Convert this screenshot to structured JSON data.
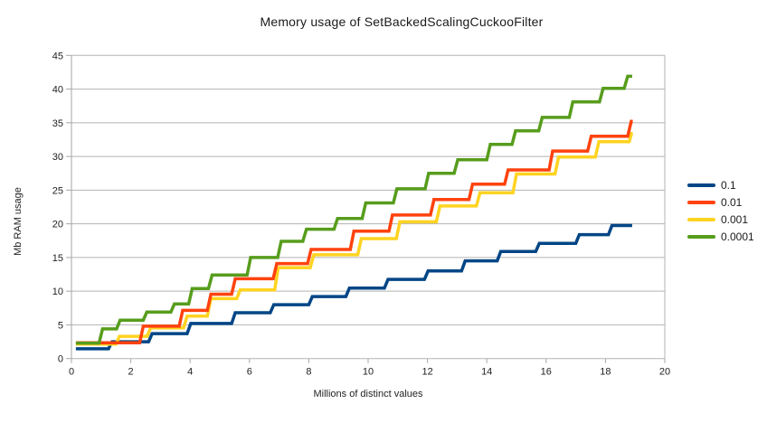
{
  "chart_data": {
    "type": "line",
    "step_style": true,
    "title": "Memory usage of SetBackedScalingCuckooFilter",
    "xlabel": "Millions of distinct values",
    "ylabel": "Mb RAM usage",
    "xlim": [
      0,
      20
    ],
    "ylim": [
      0,
      45
    ],
    "xticks": [
      0,
      2,
      4,
      6,
      8,
      10,
      12,
      14,
      16,
      18,
      20
    ],
    "yticks": [
      0,
      5,
      10,
      15,
      20,
      25,
      30,
      35,
      40,
      45
    ],
    "grid": "horizontal",
    "legend_position": "right",
    "colors": {
      "grid": "#b3b3b3",
      "axis": "#a6a6a6",
      "tick_text": "#222222"
    },
    "series": [
      {
        "name": "0.1",
        "color": "#004586",
        "points": [
          [
            0.15,
            1.45
          ],
          [
            1.25,
            1.45
          ],
          [
            1.37,
            2.5
          ],
          [
            2.6,
            2.5
          ],
          [
            2.72,
            3.7
          ],
          [
            3.9,
            3.7
          ],
          [
            4.02,
            5.2
          ],
          [
            5.4,
            5.2
          ],
          [
            5.52,
            6.8
          ],
          [
            6.7,
            6.8
          ],
          [
            6.82,
            8.0
          ],
          [
            8.0,
            8.0
          ],
          [
            8.12,
            9.2
          ],
          [
            9.25,
            9.2
          ],
          [
            9.37,
            10.45
          ],
          [
            10.55,
            10.45
          ],
          [
            10.67,
            11.75
          ],
          [
            11.9,
            11.75
          ],
          [
            12.02,
            13.0
          ],
          [
            13.15,
            13.0
          ],
          [
            13.27,
            14.5
          ],
          [
            14.35,
            14.5
          ],
          [
            14.47,
            15.9
          ],
          [
            15.65,
            15.9
          ],
          [
            15.77,
            17.1
          ],
          [
            17.0,
            17.1
          ],
          [
            17.12,
            18.4
          ],
          [
            18.1,
            18.4
          ],
          [
            18.22,
            19.75
          ],
          [
            18.9,
            19.75
          ]
        ]
      },
      {
        "name": "0.01",
        "color": "#ff420e",
        "points": [
          [
            0.15,
            2.35
          ],
          [
            2.3,
            2.35
          ],
          [
            2.42,
            4.8
          ],
          [
            3.63,
            4.8
          ],
          [
            3.75,
            7.15
          ],
          [
            4.58,
            7.15
          ],
          [
            4.7,
            9.55
          ],
          [
            5.4,
            9.55
          ],
          [
            5.52,
            11.85
          ],
          [
            6.8,
            11.85
          ],
          [
            6.92,
            14.1
          ],
          [
            7.96,
            14.1
          ],
          [
            8.08,
            16.2
          ],
          [
            9.4,
            16.2
          ],
          [
            9.52,
            18.9
          ],
          [
            10.7,
            18.9
          ],
          [
            10.82,
            21.3
          ],
          [
            12.1,
            21.3
          ],
          [
            12.22,
            23.6
          ],
          [
            13.4,
            23.6
          ],
          [
            13.52,
            25.9
          ],
          [
            14.6,
            25.9
          ],
          [
            14.72,
            28.0
          ],
          [
            16.1,
            28.0
          ],
          [
            16.22,
            30.8
          ],
          [
            17.4,
            30.8
          ],
          [
            17.52,
            33.0
          ],
          [
            18.75,
            33.0
          ],
          [
            18.87,
            35.2
          ],
          [
            18.92,
            35.2
          ]
        ]
      },
      {
        "name": "0.001",
        "color": "#ffd320",
        "points": [
          [
            0.15,
            2.15
          ],
          [
            1.5,
            2.15
          ],
          [
            1.62,
            3.3
          ],
          [
            2.55,
            3.3
          ],
          [
            2.67,
            4.55
          ],
          [
            3.78,
            4.55
          ],
          [
            3.9,
            6.3
          ],
          [
            4.58,
            6.3
          ],
          [
            4.7,
            8.9
          ],
          [
            5.57,
            8.9
          ],
          [
            5.69,
            10.2
          ],
          [
            6.85,
            10.2
          ],
          [
            6.97,
            13.5
          ],
          [
            8.05,
            13.5
          ],
          [
            8.17,
            15.4
          ],
          [
            9.65,
            15.4
          ],
          [
            9.77,
            17.8
          ],
          [
            10.95,
            17.8
          ],
          [
            11.07,
            20.3
          ],
          [
            12.3,
            20.3
          ],
          [
            12.42,
            22.65
          ],
          [
            13.65,
            22.65
          ],
          [
            13.77,
            24.6
          ],
          [
            14.88,
            24.6
          ],
          [
            15.0,
            27.4
          ],
          [
            16.3,
            27.4
          ],
          [
            16.42,
            29.9
          ],
          [
            17.66,
            29.9
          ],
          [
            17.78,
            32.2
          ],
          [
            18.8,
            32.2
          ],
          [
            18.88,
            33.4
          ],
          [
            18.92,
            33.4
          ]
        ]
      },
      {
        "name": "0.0001",
        "color": "#579d1c",
        "points": [
          [
            0.15,
            2.3
          ],
          [
            0.93,
            2.3
          ],
          [
            1.05,
            4.4
          ],
          [
            1.52,
            4.4
          ],
          [
            1.64,
            5.7
          ],
          [
            2.42,
            5.7
          ],
          [
            2.54,
            6.9
          ],
          [
            3.35,
            6.9
          ],
          [
            3.47,
            8.1
          ],
          [
            3.95,
            8.1
          ],
          [
            4.07,
            10.4
          ],
          [
            4.62,
            10.4
          ],
          [
            4.74,
            12.4
          ],
          [
            5.92,
            12.4
          ],
          [
            6.04,
            15.0
          ],
          [
            6.95,
            15.0
          ],
          [
            7.07,
            17.4
          ],
          [
            7.8,
            17.4
          ],
          [
            7.92,
            19.2
          ],
          [
            8.85,
            19.2
          ],
          [
            8.97,
            20.8
          ],
          [
            9.8,
            20.8
          ],
          [
            9.92,
            23.1
          ],
          [
            10.85,
            23.1
          ],
          [
            10.97,
            25.2
          ],
          [
            11.92,
            25.2
          ],
          [
            12.04,
            27.5
          ],
          [
            12.9,
            27.5
          ],
          [
            13.02,
            29.5
          ],
          [
            14.0,
            29.5
          ],
          [
            14.12,
            31.8
          ],
          [
            14.85,
            31.8
          ],
          [
            14.97,
            33.8
          ],
          [
            15.75,
            33.8
          ],
          [
            15.87,
            35.8
          ],
          [
            16.78,
            35.8
          ],
          [
            16.9,
            38.1
          ],
          [
            17.8,
            38.1
          ],
          [
            17.92,
            40.1
          ],
          [
            18.63,
            40.1
          ],
          [
            18.75,
            41.9
          ],
          [
            18.9,
            41.9
          ]
        ]
      }
    ]
  }
}
